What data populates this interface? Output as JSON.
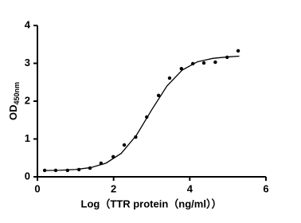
{
  "chart_data": {
    "type": "scatter",
    "x_label": "Log（TTR protein（ng/ml））",
    "y_label": "OD",
    "y_label_sub": "450nm",
    "x": [
      0.19,
      0.48,
      0.79,
      1.09,
      1.38,
      1.67,
      1.99,
      2.28,
      2.58,
      2.87,
      3.18,
      3.47,
      3.78,
      4.08,
      4.37,
      4.67,
      4.98,
      5.27
    ],
    "values": [
      0.17,
      0.17,
      0.17,
      0.19,
      0.23,
      0.36,
      0.53,
      0.84,
      1.05,
      1.58,
      2.15,
      2.61,
      2.86,
      2.99,
      3.01,
      3.03,
      3.16,
      3.33
    ],
    "color": "#000000",
    "curve": {
      "x": [
        0.2,
        0.6,
        1.0,
        1.4,
        1.8,
        2.2,
        2.6,
        3.0,
        3.4,
        3.8,
        4.2,
        4.6,
        5.0,
        5.3
      ],
      "values": [
        0.165,
        0.173,
        0.194,
        0.243,
        0.361,
        0.619,
        1.1,
        1.77,
        2.4,
        2.82,
        3.04,
        3.13,
        3.17,
        3.19
      ]
    },
    "xlim": [
      0,
      6
    ],
    "xticks": [
      0,
      2,
      4,
      6
    ],
    "ylim": [
      0,
      4
    ],
    "yticks": [
      0,
      1,
      2,
      3,
      4
    ]
  }
}
